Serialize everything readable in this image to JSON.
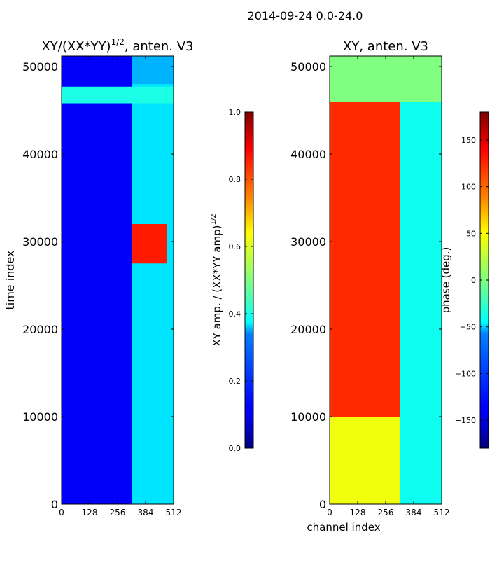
{
  "suptitle": "2014-09-24 0.0-24.0",
  "chart_data": [
    {
      "type": "heatmap",
      "title": "XY/(XX*YY)",
      "title_superscript": "1/2",
      "title_suffix": ", anten. V3",
      "xlabel": "",
      "ylabel": "time index",
      "xlim": [
        0,
        512
      ],
      "ylim": [
        0,
        51200
      ],
      "xticks": [
        0,
        128,
        256,
        384,
        512
      ],
      "yticks": [
        0,
        10000,
        20000,
        30000,
        40000,
        50000
      ],
      "colormap": "jet",
      "colorbar": {
        "label": "XY amp. / (XX*YY amp)",
        "label_superscript": "1/2",
        "range": [
          0.0,
          1.0
        ],
        "ticks": [
          0.0,
          0.2,
          0.4,
          0.6,
          0.8,
          1.0
        ],
        "tick_labels": [
          "0.0",
          "0.2",
          "0.4",
          "0.6",
          "0.8",
          "1.0"
        ]
      },
      "regions": [
        {
          "x": [
            0,
            320
          ],
          "y": [
            0,
            51200
          ],
          "value": 0.12
        },
        {
          "x": [
            320,
            512
          ],
          "y": [
            0,
            51200
          ],
          "value": 0.35
        },
        {
          "x": [
            0,
            512
          ],
          "y": [
            45800,
            47700
          ],
          "value": 0.4
        },
        {
          "x": [
            320,
            480
          ],
          "y": [
            27500,
            32000
          ],
          "value": 0.85
        },
        {
          "x": [
            320,
            512
          ],
          "y": [
            48000,
            51200
          ],
          "value": 0.3
        }
      ]
    },
    {
      "type": "heatmap",
      "title": "XY, anten. V3",
      "xlabel": "channel index",
      "ylabel": "",
      "xlim": [
        0,
        512
      ],
      "ylim": [
        0,
        51200
      ],
      "xticks": [
        0,
        128,
        256,
        384,
        512
      ],
      "yticks": [
        0,
        10000,
        20000,
        30000,
        40000,
        50000
      ],
      "colormap": "jet",
      "colorbar": {
        "label": "phase (deg.)",
        "range": [
          -180,
          180
        ],
        "ticks": [
          -150,
          -100,
          -50,
          0,
          50,
          100,
          150
        ],
        "tick_labels": [
          "−150",
          "−100",
          "−50",
          "0",
          "50",
          "100",
          "150"
        ]
      },
      "regions": [
        {
          "x": [
            0,
            320
          ],
          "y": [
            0,
            46000
          ],
          "value": 120
        },
        {
          "x": [
            320,
            512
          ],
          "y": [
            0,
            46000
          ],
          "value": -40
        },
        {
          "x": [
            0,
            512
          ],
          "y": [
            46000,
            51200
          ],
          "value": 0
        },
        {
          "x": [
            0,
            320
          ],
          "y": [
            0,
            10000
          ],
          "value": 40
        }
      ]
    }
  ]
}
